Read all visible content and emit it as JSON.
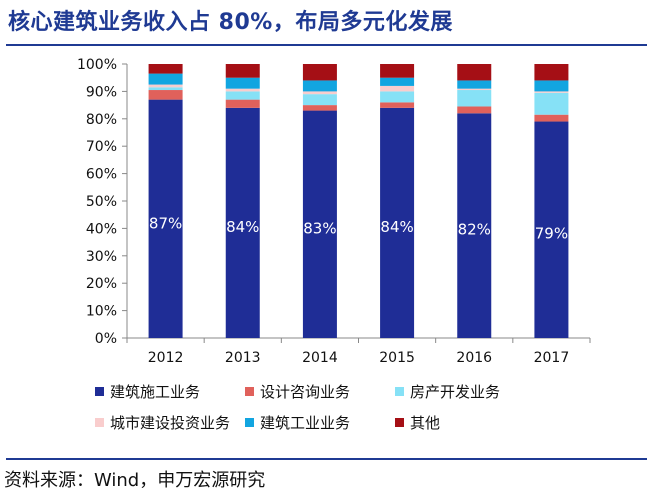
{
  "header": {
    "title": "核心建筑业务收入占 80%，布局多元化发展"
  },
  "footer": {
    "source": "资料来源：Wind，申万宏源研究"
  },
  "chart_data": {
    "type": "bar",
    "stacked": true,
    "percent": true,
    "categories": [
      "2012",
      "2013",
      "2014",
      "2015",
      "2016",
      "2017"
    ],
    "ylim": [
      0,
      100
    ],
    "yticks": [
      "0%",
      "10%",
      "20%",
      "30%",
      "40%",
      "50%",
      "60%",
      "70%",
      "80%",
      "90%",
      "100%"
    ],
    "series": [
      {
        "name": "建筑施工业务",
        "color": "#1f2d96",
        "values": [
          87,
          84,
          83,
          84,
          82,
          79
        ],
        "labels": [
          "87%",
          "84%",
          "83%",
          "84%",
          "82%",
          "79%"
        ]
      },
      {
        "name": "设计咨询业务",
        "color": "#e0615b",
        "values": [
          3.5,
          3,
          2,
          2,
          2.5,
          2.5
        ]
      },
      {
        "name": "房产开发业务",
        "color": "#86e1f6",
        "values": [
          1,
          3,
          4,
          4,
          6,
          8
        ]
      },
      {
        "name": "城市建设投资业务",
        "color": "#f9cdcd",
        "values": [
          1,
          1,
          1,
          2,
          0.5,
          0.5
        ]
      },
      {
        "name": "建筑工业业务",
        "color": "#12a5e0",
        "values": [
          4,
          4,
          4,
          3,
          3,
          4
        ]
      },
      {
        "name": "其他",
        "color": "#a50f15",
        "values": [
          3.5,
          5,
          6,
          5,
          6,
          6
        ]
      }
    ],
    "legend_position": "bottom",
    "grid": false
  }
}
